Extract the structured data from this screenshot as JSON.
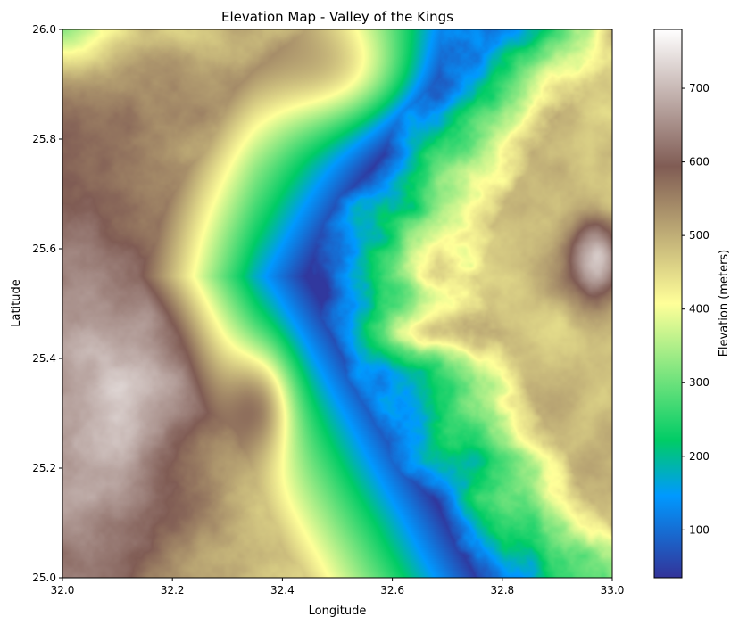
{
  "chart_data": {
    "type": "heatmap",
    "title": "Elevation Map - Valley of the Kings",
    "xlabel": "Longitude",
    "ylabel": "Latitude",
    "xlim": [
      32.0,
      33.0
    ],
    "ylim": [
      25.0,
      26.0
    ],
    "x_ticks": [
      "32.0",
      "32.2",
      "32.4",
      "32.6",
      "32.8",
      "33.0"
    ],
    "y_ticks": [
      "25.0",
      "25.2",
      "25.4",
      "25.6",
      "25.8",
      "26.0"
    ],
    "colorbar": {
      "label": "Elevation (meters)",
      "range": [
        35,
        780
      ],
      "ticks": [
        "100",
        "200",
        "300",
        "400",
        "500",
        "600",
        "700"
      ],
      "colormap": "terrain"
    },
    "grid": false
  }
}
